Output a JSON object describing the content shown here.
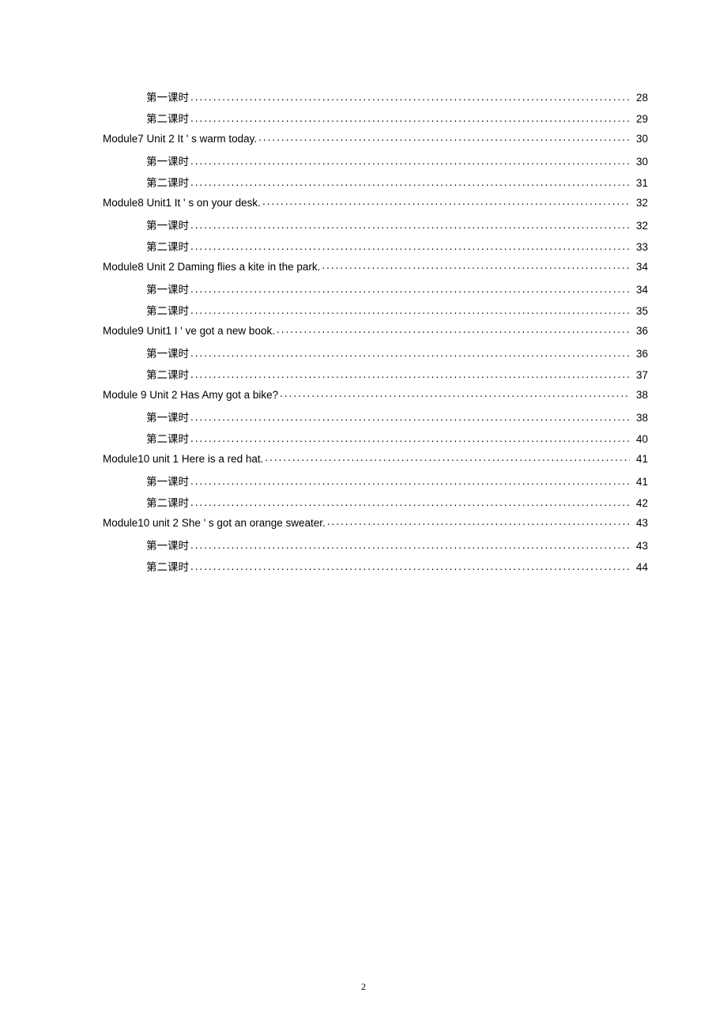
{
  "toc": [
    {
      "level": 1,
      "label": "第一课时",
      "page": "28"
    },
    {
      "level": 1,
      "label": "第二课时",
      "page": "29"
    },
    {
      "level": 0,
      "label": "Module7 Unit  2 It ' s warm today.",
      "page": "30"
    },
    {
      "level": 1,
      "label": "第一课时",
      "page": "30"
    },
    {
      "level": 1,
      "label": "第二课时",
      "page": "31"
    },
    {
      "level": 0,
      "label": "Module8 Unit1 It   ' s on your desk.",
      "page": "32"
    },
    {
      "level": 1,
      "label": "第一课时",
      "page": "32"
    },
    {
      "level": 1,
      "label": "第二课时",
      "page": "33"
    },
    {
      "level": 0,
      "label": "Module8 Unit 2 Daming flies a kite in the park.",
      "page": "34"
    },
    {
      "level": 1,
      "label": "第一课时",
      "page": "34"
    },
    {
      "level": 1,
      "label": "第二课时",
      "page": "35"
    },
    {
      "level": 0,
      "label": "Module9 Unit1 I   ' ve got a new book.",
      "page": "36"
    },
    {
      "level": 1,
      "label": "第一课时",
      "page": "36"
    },
    {
      "level": 1,
      "label": "第二课时",
      "page": "37"
    },
    {
      "level": 0,
      "label": "Module 9 Unit 2 Has Amy got a bike?",
      "page": "38"
    },
    {
      "level": 1,
      "label": "第一课时",
      "page": "38"
    },
    {
      "level": 1,
      "label": "第二课时",
      "page": "40"
    },
    {
      "level": 0,
      "label": "Module10 unit 1 Here is a red hat.",
      "page": "41"
    },
    {
      "level": 1,
      "label": "第一课时",
      "page": "41"
    },
    {
      "level": 1,
      "label": "第二课时",
      "page": "42"
    },
    {
      "level": 0,
      "label": "Module10 unit 2 She   ' s got an orange sweater.",
      "page": "43"
    },
    {
      "level": 1,
      "label": "第一课时",
      "page": "43"
    },
    {
      "level": 1,
      "label": "第二课时",
      "page": "44"
    }
  ],
  "page_number": "2"
}
